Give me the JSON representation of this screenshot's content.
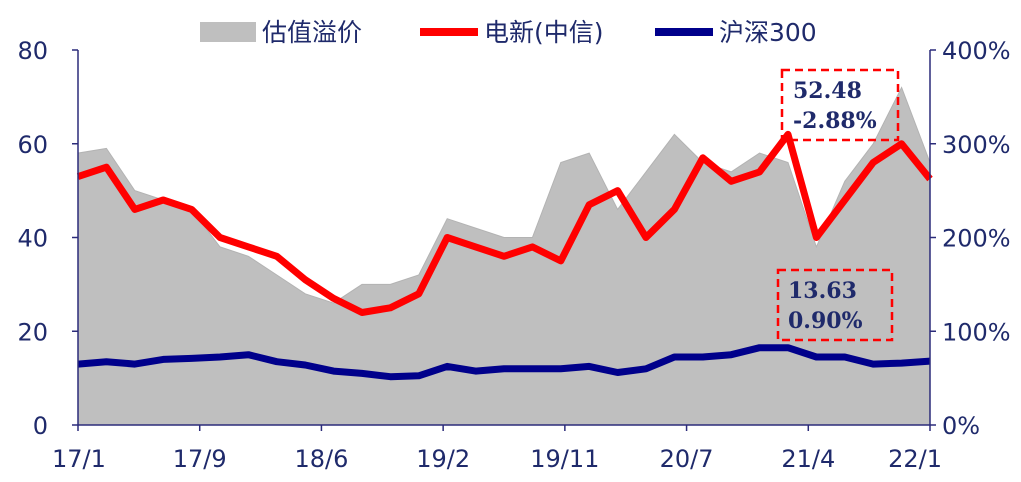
{
  "chart_data": {
    "type": "line",
    "legend": [
      {
        "name": "估值溢价",
        "color": "#bfbfbf",
        "kind": "area"
      },
      {
        "name": "电新(中信)",
        "color": "#ff0000",
        "kind": "line"
      },
      {
        "name": "沪深300",
        "color": "#00008b",
        "kind": "line"
      }
    ],
    "legend_position": "top",
    "x_tick_labels": [
      "17/1",
      "17/9",
      "18/6",
      "19/2",
      "19/11",
      "20/7",
      "21/4",
      "22/1"
    ],
    "left_axis": {
      "ylim": [
        0,
        80
      ],
      "ticks": [
        "0",
        "20",
        "40",
        "60",
        "80"
      ]
    },
    "right_axis": {
      "ylim": [
        0,
        400
      ],
      "ticks": [
        "0%",
        "100%",
        "200%",
        "300%",
        "400%"
      ]
    },
    "x_range": [
      "2017-01",
      "2022-01"
    ],
    "series": [
      {
        "name": "估值溢价",
        "axis": "right",
        "color": "#bfbfbf",
        "x": [
          "2017-01",
          "2017-03",
          "2017-05",
          "2017-07",
          "2017-09",
          "2017-11",
          "2018-01",
          "2018-03",
          "2018-05",
          "2018-07",
          "2018-09",
          "2018-11",
          "2019-01",
          "2019-03",
          "2019-05",
          "2019-07",
          "2019-09",
          "2019-11",
          "2020-01",
          "2020-03",
          "2020-05",
          "2020-07",
          "2020-09",
          "2020-11",
          "2021-01",
          "2021-03",
          "2021-05",
          "2021-07",
          "2021-09",
          "2021-11",
          "2022-01"
        ],
        "values": [
          290,
          295,
          250,
          240,
          230,
          190,
          180,
          160,
          140,
          130,
          150,
          150,
          160,
          220,
          210,
          200,
          200,
          280,
          290,
          230,
          270,
          310,
          280,
          270,
          290,
          280,
          190,
          260,
          300,
          360,
          280
        ]
      },
      {
        "name": "电新(中信)",
        "axis": "left",
        "color": "#ff0000",
        "x": [
          "2017-01",
          "2017-03",
          "2017-05",
          "2017-07",
          "2017-09",
          "2017-11",
          "2018-01",
          "2018-03",
          "2018-05",
          "2018-07",
          "2018-09",
          "2018-11",
          "2019-01",
          "2019-03",
          "2019-05",
          "2019-07",
          "2019-09",
          "2019-11",
          "2020-01",
          "2020-03",
          "2020-05",
          "2020-07",
          "2020-09",
          "2020-11",
          "2021-01",
          "2021-03",
          "2021-05",
          "2021-07",
          "2021-09",
          "2021-11",
          "2022-01"
        ],
        "values": [
          53,
          55,
          46,
          48,
          46,
          40,
          38,
          36,
          31,
          27,
          24,
          25,
          28,
          40,
          38,
          36,
          38,
          35,
          47,
          50,
          40,
          46,
          57,
          52,
          54,
          62,
          40,
          48,
          56,
          60,
          52.48
        ]
      },
      {
        "name": "沪深300",
        "axis": "left",
        "color": "#00008b",
        "x": [
          "2017-01",
          "2017-03",
          "2017-05",
          "2017-07",
          "2017-09",
          "2017-11",
          "2018-01",
          "2018-03",
          "2018-05",
          "2018-07",
          "2018-09",
          "2018-11",
          "2019-01",
          "2019-03",
          "2019-05",
          "2019-07",
          "2019-09",
          "2019-11",
          "2020-01",
          "2020-03",
          "2020-05",
          "2020-07",
          "2020-09",
          "2020-11",
          "2021-01",
          "2021-03",
          "2021-05",
          "2021-07",
          "2021-09",
          "2021-11",
          "2022-01"
        ],
        "values": [
          13,
          13.5,
          13,
          14,
          14.2,
          14.5,
          15,
          13.5,
          12.8,
          11.5,
          11,
          10.3,
          10.5,
          12.5,
          11.5,
          12,
          12,
          12,
          12.5,
          11.2,
          12,
          14.5,
          14.5,
          15,
          16.5,
          16.5,
          14.5,
          14.5,
          13,
          13.2,
          13.63
        ]
      }
    ],
    "annotations": [
      {
        "lines": [
          "52.48",
          "-2.88%"
        ],
        "border_color": "#ff0000",
        "border_style": "dashed"
      },
      {
        "lines": [
          "13.63",
          "0.90%"
        ],
        "border_color": "#ff0000",
        "border_style": "dashed"
      }
    ]
  }
}
